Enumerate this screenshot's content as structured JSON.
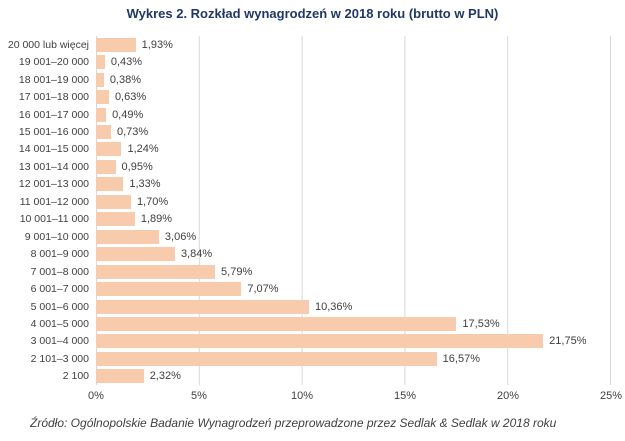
{
  "title": "Wykres 2. Rozkład wynagrodzeń w 2018 roku (brutto w PLN)",
  "source_note": "Źródło: Ogólnopolskie Badanie Wynagrodzeń przeprowadzone przez Sedlak & Sedlak w 2018 roku",
  "colors": {
    "title": "#1F3864",
    "bar": "#F8CBAD",
    "label": "#404040",
    "gridline": "#D9D9D9",
    "background": "#FFFFFF"
  },
  "chart_data": {
    "type": "bar",
    "orientation": "horizontal",
    "title": "Wykres 2. Rozkład wynagrodzeń w 2018 roku (brutto w PLN)",
    "source": "Źródło: Ogólnopolskie Badanie Wynagrodzeń przeprowadzone przez Sedlak & Sedlak w 2018 roku",
    "categories": [
      "20 000 lub więcej",
      "19 001–20 000",
      "18 001–19 000",
      "17 001–18 000",
      "16 001–17 000",
      "15 001–16 000",
      "14 001–15 000",
      "13 001–14 000",
      "12 001–13 000",
      "11 001–12 000",
      "10 001–11 000",
      "9 001–10 000",
      "8 001–9 000",
      "7 001–8 000",
      "6 001–7 000",
      "5 001–6 000",
      "4 001–5 000",
      "3 001–4 000",
      "2 101–3 000",
      "2 100"
    ],
    "values": [
      1.93,
      0.43,
      0.38,
      0.63,
      0.49,
      0.73,
      1.24,
      0.95,
      1.33,
      1.7,
      1.89,
      3.06,
      3.84,
      5.79,
      7.07,
      10.36,
      17.53,
      21.75,
      16.57,
      2.32
    ],
    "value_labels": [
      "1,93%",
      "0,43%",
      "0,38%",
      "0,63%",
      "0,49%",
      "0,73%",
      "1,24%",
      "0,95%",
      "1,33%",
      "1,70%",
      "1,89%",
      "3,06%",
      "3,84%",
      "5,79%",
      "7,07%",
      "10,36%",
      "17,53%",
      "21,75%",
      "16,57%",
      "2,32%"
    ],
    "xlabel": "",
    "ylabel": "",
    "xlim": [
      0,
      25
    ],
    "x_ticks": [
      "0%",
      "5%",
      "10%",
      "15%",
      "20%",
      "25%"
    ],
    "grid": true,
    "legend": false
  }
}
